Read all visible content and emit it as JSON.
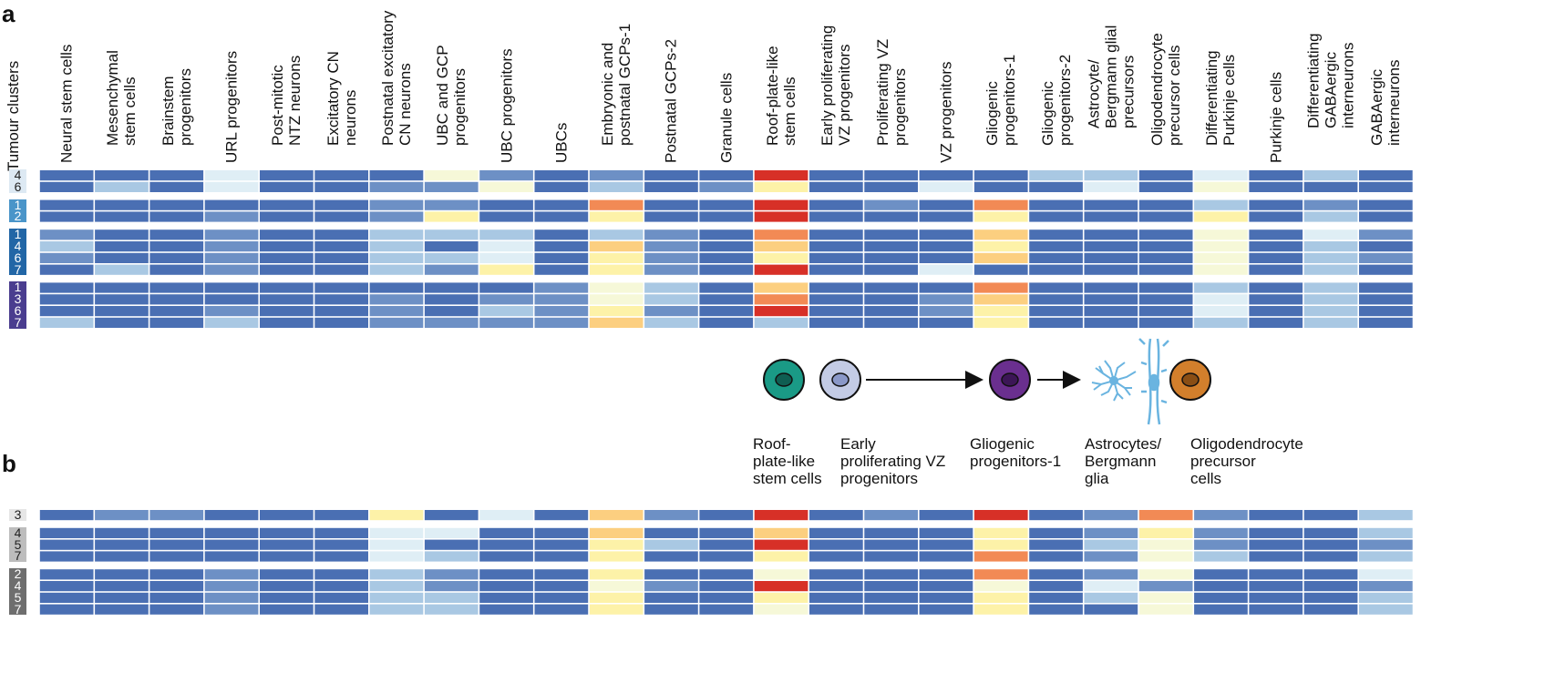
{
  "panel_a_label": "a",
  "panel_b_label": "b",
  "row_axis_title": "Tumour clusters",
  "columns": [
    "Neural stem cells",
    "Mesenchymal\nstem cells",
    "Brainstem\nprogenitors",
    "URL progenitors",
    "Post-mitotic\nNTZ neurons",
    "Excitatory CN\nneurons",
    "Postnatal excitatory\nCN neurons",
    "UBC and GCP\nprogenitors",
    "UBC progenitors",
    "UBCs",
    "Embryonic and\npostnatal GCPs-1",
    "Postnatal GCPs-2",
    "Granule cells",
    "Roof-plate-like\nstem cells",
    "Early proliferating\nVZ progenitors",
    "Proliferating VZ\nprogenitors",
    "VZ progenitors",
    "Gliogenic\nprogenitors-1",
    "Gliogenic\nprogenitors-2",
    "Astrocyte/\nBergmann glial\nprecursors",
    "Oligodendrocyte\nprecursor cells",
    "Differentiating\nPurkinje cells",
    "Purkinje cells",
    "Differentiating\nGABAergic\ninterneurons",
    "GABAergic\ninterneurons"
  ],
  "color_scale": [
    "#4a6fb3",
    "#6d90c5",
    "#a9c8e3",
    "#dfeef5",
    "#f6f8d8",
    "#fdf2a8",
    "#fccf80",
    "#f28a55",
    "#d73027"
  ],
  "panel_a_groups": [
    {
      "color": "#dde9f3",
      "text_color": "#222222",
      "rows": [
        {
          "label": "4",
          "levels": [
            0,
            0,
            0,
            3,
            0,
            0,
            0,
            4,
            1,
            0,
            1,
            0,
            0,
            8,
            0,
            0,
            0,
            0,
            2,
            2,
            0,
            3,
            0,
            2,
            0
          ]
        },
        {
          "label": "6",
          "levels": [
            0,
            2,
            0,
            3,
            0,
            0,
            1,
            1,
            4,
            0,
            2,
            0,
            1,
            5,
            0,
            0,
            3,
            0,
            0,
            3,
            0,
            4,
            0,
            0,
            0
          ]
        }
      ]
    },
    {
      "color": "#4a95c9",
      "text_color": "#ffffff",
      "rows": [
        {
          "label": "1",
          "levels": [
            0,
            0,
            0,
            0,
            0,
            0,
            1,
            1,
            0,
            0,
            7,
            0,
            0,
            8,
            0,
            1,
            0,
            7,
            0,
            0,
            0,
            2,
            0,
            1,
            0
          ]
        },
        {
          "label": "2",
          "levels": [
            0,
            0,
            0,
            1,
            0,
            0,
            1,
            5,
            0,
            0,
            5,
            0,
            0,
            8,
            0,
            0,
            0,
            5,
            0,
            0,
            0,
            5,
            0,
            2,
            0
          ]
        }
      ]
    },
    {
      "color": "#2266a6",
      "text_color": "#ffffff",
      "rows": [
        {
          "label": "1",
          "levels": [
            1,
            0,
            0,
            1,
            0,
            0,
            2,
            2,
            2,
            0,
            2,
            1,
            0,
            7,
            0,
            0,
            0,
            6,
            0,
            0,
            0,
            4,
            0,
            3,
            1
          ]
        },
        {
          "label": "4",
          "levels": [
            2,
            0,
            0,
            1,
            0,
            0,
            2,
            0,
            3,
            0,
            6,
            1,
            0,
            6,
            0,
            0,
            0,
            5,
            0,
            0,
            0,
            4,
            0,
            2,
            0
          ]
        },
        {
          "label": "6",
          "levels": [
            1,
            0,
            0,
            1,
            0,
            0,
            2,
            2,
            3,
            0,
            5,
            1,
            0,
            5,
            0,
            0,
            0,
            6,
            0,
            0,
            0,
            4,
            0,
            2,
            1
          ]
        },
        {
          "label": "7",
          "levels": [
            0,
            2,
            0,
            1,
            0,
            0,
            2,
            1,
            5,
            0,
            5,
            1,
            0,
            8,
            0,
            0,
            3,
            0,
            0,
            0,
            0,
            4,
            0,
            2,
            0
          ]
        }
      ]
    },
    {
      "color": "#4a3d8f",
      "text_color": "#ffffff",
      "rows": [
        {
          "label": "1",
          "levels": [
            0,
            0,
            0,
            0,
            0,
            0,
            0,
            0,
            0,
            1,
            4,
            2,
            0,
            6,
            0,
            0,
            0,
            7,
            0,
            0,
            0,
            2,
            0,
            2,
            0
          ]
        },
        {
          "label": "3",
          "levels": [
            0,
            0,
            0,
            0,
            0,
            0,
            1,
            0,
            1,
            1,
            4,
            2,
            0,
            7,
            0,
            0,
            1,
            6,
            0,
            0,
            0,
            3,
            0,
            2,
            0
          ]
        },
        {
          "label": "6",
          "levels": [
            0,
            0,
            0,
            1,
            0,
            0,
            1,
            0,
            2,
            1,
            5,
            1,
            0,
            8,
            0,
            0,
            1,
            5,
            0,
            0,
            0,
            3,
            0,
            2,
            0
          ]
        },
        {
          "label": "7",
          "levels": [
            2,
            0,
            0,
            2,
            0,
            0,
            1,
            1,
            1,
            1,
            6,
            2,
            0,
            2,
            0,
            0,
            0,
            5,
            0,
            0,
            0,
            2,
            0,
            2,
            0
          ]
        }
      ]
    }
  ],
  "panel_b_groups": [
    {
      "color": "#e6e6e6",
      "text_color": "#222222",
      "rows": [
        {
          "label": "3",
          "levels": [
            0,
            1,
            1,
            0,
            0,
            0,
            5,
            0,
            3,
            0,
            6,
            1,
            0,
            8,
            0,
            1,
            0,
            8,
            0,
            1,
            7,
            1,
            0,
            0,
            2
          ]
        }
      ]
    },
    {
      "color": "#bdbdbd",
      "text_color": "#222222",
      "rows": [
        {
          "label": "4",
          "levels": [
            0,
            0,
            0,
            0,
            0,
            0,
            3,
            3,
            0,
            0,
            6,
            0,
            0,
            6,
            0,
            0,
            0,
            5,
            0,
            1,
            5,
            1,
            0,
            0,
            2
          ]
        },
        {
          "label": "5",
          "levels": [
            0,
            0,
            0,
            0,
            0,
            0,
            3,
            0,
            0,
            0,
            5,
            2,
            0,
            8,
            0,
            0,
            0,
            5,
            0,
            2,
            4,
            1,
            0,
            0,
            1
          ]
        },
        {
          "label": "7",
          "levels": [
            0,
            0,
            0,
            0,
            0,
            0,
            3,
            2,
            0,
            0,
            5,
            0,
            0,
            5,
            0,
            0,
            0,
            7,
            0,
            1,
            4,
            2,
            0,
            0,
            2
          ]
        }
      ]
    },
    {
      "color": "#6e6e6e",
      "text_color": "#ffffff",
      "rows": [
        {
          "label": "2",
          "levels": [
            0,
            0,
            0,
            1,
            0,
            0,
            2,
            1,
            0,
            0,
            5,
            0,
            0,
            4,
            0,
            0,
            0,
            7,
            0,
            1,
            4,
            0,
            0,
            0,
            3
          ]
        },
        {
          "label": "4",
          "levels": [
            0,
            0,
            0,
            1,
            0,
            0,
            2,
            1,
            0,
            0,
            4,
            1,
            0,
            8,
            0,
            0,
            0,
            4,
            0,
            3,
            1,
            0,
            0,
            0,
            1
          ]
        },
        {
          "label": "5",
          "levels": [
            0,
            0,
            0,
            1,
            0,
            0,
            2,
            2,
            0,
            0,
            5,
            0,
            0,
            5,
            0,
            0,
            0,
            5,
            0,
            2,
            4,
            0,
            0,
            0,
            2
          ]
        },
        {
          "label": "7",
          "levels": [
            0,
            0,
            0,
            1,
            0,
            0,
            2,
            2,
            0,
            0,
            5,
            0,
            0,
            4,
            0,
            0,
            0,
            5,
            0,
            0,
            4,
            0,
            0,
            0,
            2
          ]
        }
      ]
    }
  ],
  "lineage_labels": [
    "Roof-\nplate-like\nstem cells",
    "Early\nproliferating VZ\nprogenitors",
    "Gliogenic\nprogenitors-1",
    "Astrocytes/\nBergmann\nglia",
    "Oligodendrocyte\nprecursor\ncells"
  ],
  "lineage_colors": {
    "roof_plate": "#1a9a86",
    "early_vz": "#c3cbe5",
    "gliogenic": "#6a2f8f",
    "astro": "#6ab4e0",
    "opc": "#d27f2c"
  }
}
